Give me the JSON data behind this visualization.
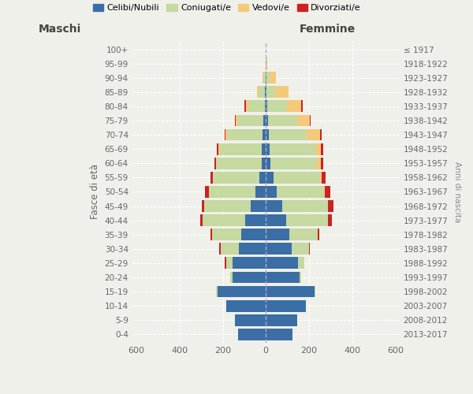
{
  "age_groups": [
    "0-4",
    "5-9",
    "10-14",
    "15-19",
    "20-24",
    "25-29",
    "30-34",
    "35-39",
    "40-44",
    "45-49",
    "50-54",
    "55-59",
    "60-64",
    "65-69",
    "70-74",
    "75-79",
    "80-84",
    "85-89",
    "90-94",
    "95-99",
    "100+"
  ],
  "birth_years": [
    "2013-2017",
    "2008-2012",
    "2003-2007",
    "1998-2002",
    "1993-1997",
    "1988-1992",
    "1983-1987",
    "1978-1982",
    "1973-1977",
    "1968-1972",
    "1963-1967",
    "1958-1962",
    "1953-1957",
    "1948-1952",
    "1943-1947",
    "1938-1942",
    "1933-1937",
    "1928-1932",
    "1923-1927",
    "1918-1922",
    "≤ 1917"
  ],
  "maschi": {
    "celibi": [
      130,
      145,
      185,
      225,
      155,
      155,
      125,
      115,
      95,
      70,
      50,
      30,
      20,
      18,
      15,
      10,
      5,
      4,
      2,
      0,
      0
    ],
    "coniugati": [
      0,
      0,
      0,
      5,
      10,
      30,
      85,
      135,
      200,
      215,
      215,
      215,
      210,
      200,
      165,
      120,
      78,
      28,
      8,
      1,
      0
    ],
    "vedovi": [
      0,
      0,
      0,
      0,
      0,
      0,
      0,
      0,
      0,
      0,
      0,
      0,
      0,
      3,
      6,
      10,
      10,
      8,
      5,
      0,
      0
    ],
    "divorziati": [
      0,
      0,
      0,
      0,
      0,
      5,
      5,
      5,
      10,
      12,
      18,
      12,
      10,
      8,
      5,
      5,
      5,
      0,
      0,
      0,
      0
    ]
  },
  "femmine": {
    "nubili": [
      125,
      145,
      185,
      225,
      155,
      150,
      120,
      110,
      95,
      75,
      50,
      35,
      22,
      18,
      15,
      10,
      5,
      4,
      2,
      0,
      0
    ],
    "coniugate": [
      0,
      0,
      0,
      5,
      10,
      30,
      80,
      130,
      195,
      215,
      220,
      215,
      215,
      210,
      175,
      135,
      92,
      38,
      14,
      1,
      0
    ],
    "vedove": [
      0,
      0,
      0,
      0,
      0,
      0,
      0,
      0,
      0,
      0,
      5,
      10,
      20,
      28,
      62,
      58,
      68,
      62,
      32,
      5,
      0
    ],
    "divorziate": [
      0,
      0,
      0,
      0,
      0,
      0,
      5,
      8,
      15,
      25,
      25,
      18,
      10,
      10,
      8,
      5,
      5,
      0,
      0,
      0,
      0
    ]
  },
  "colors": {
    "celibi": "#3a6ea5",
    "coniugati": "#c5d9a0",
    "vedovi": "#f5c97a",
    "divorziati": "#cc2222"
  },
  "xlim": 620,
  "ylabel": "Fasce di età",
  "ylabel2": "Anni di nascita",
  "xlabel_maschi": "Maschi",
  "xlabel_femmine": "Femmine",
  "bg_color": "#f0f0eb",
  "grid_color": "#ffffff",
  "legend_labels": [
    "Celibi/Nubili",
    "Coniugati/e",
    "Vedovi/e",
    "Divorziati/e"
  ]
}
